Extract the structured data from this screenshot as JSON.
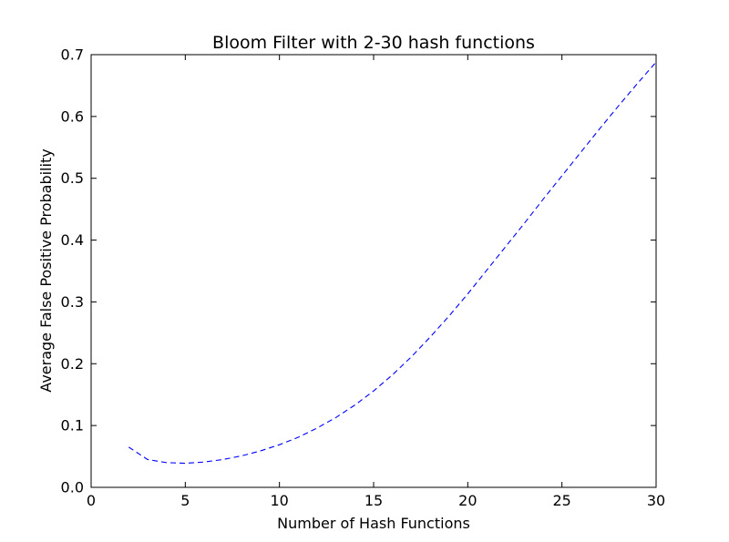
{
  "chart_data": {
    "type": "line",
    "title": "Bloom Filter with 2-30 hash functions",
    "xlabel": "Number of Hash Functions",
    "ylabel": "Average False Positive Probability",
    "xlim": [
      0,
      30
    ],
    "ylim": [
      0.0,
      0.7
    ],
    "xticks": [
      "0",
      "5",
      "10",
      "15",
      "20",
      "25",
      "30"
    ],
    "yticks": [
      "0.0",
      "0.1",
      "0.2",
      "0.3",
      "0.4",
      "0.5",
      "0.6",
      "0.7"
    ],
    "grid": false,
    "series": [
      {
        "color": "#0000ff",
        "linestyle": "dashed",
        "x": [
          2,
          3,
          4,
          5,
          6,
          7,
          8,
          9,
          10,
          11,
          12,
          13,
          14,
          15,
          16,
          17,
          18,
          19,
          20,
          21,
          22,
          23,
          24,
          25,
          26,
          27,
          28,
          29,
          30
        ],
        "y": [
          0.065,
          0.045,
          0.04,
          0.039,
          0.041,
          0.045,
          0.051,
          0.059,
          0.069,
          0.081,
          0.096,
          0.113,
          0.133,
          0.156,
          0.182,
          0.211,
          0.243,
          0.277,
          0.313,
          0.351,
          0.389,
          0.427,
          0.466,
          0.504,
          0.542,
          0.58,
          0.617,
          0.653,
          0.688
        ]
      }
    ]
  }
}
